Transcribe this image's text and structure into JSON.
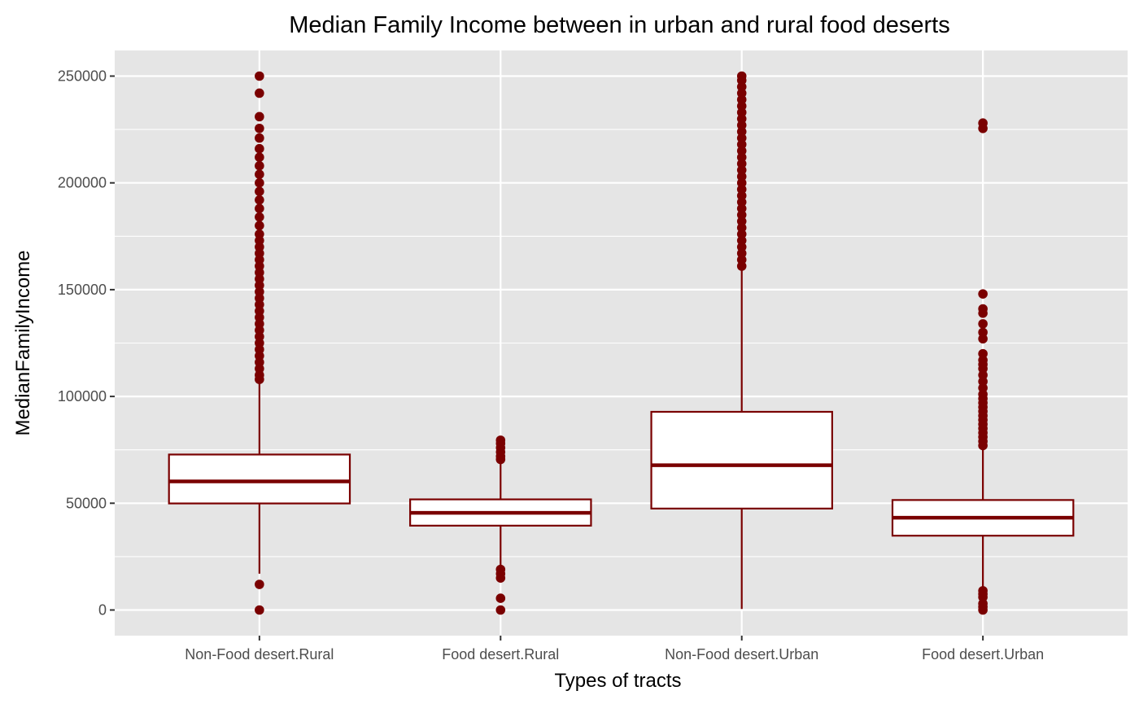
{
  "colors": {
    "panel": "#e5e5e5",
    "grid": "#ffffff",
    "box_stroke": "#7a0000",
    "box_fill": "#ffffff",
    "outlier": "#7a0000",
    "tick": "#333333"
  },
  "chart_data": {
    "type": "boxplot",
    "title": "Median Family Income between in urban and rural food deserts",
    "xlabel": "Types of tracts",
    "ylabel": "MedianFamilyIncome",
    "ylim": [
      -12000,
      262000
    ],
    "y_ticks": [
      0,
      50000,
      100000,
      150000,
      200000,
      250000
    ],
    "y_tick_labels": [
      "0",
      "50000",
      "100000",
      "150000",
      "200000",
      "250000"
    ],
    "grid": true,
    "categories": [
      "Non-Food desert.Rural",
      "Food desert.Rural",
      "Non-Food desert.Urban",
      "Food desert.Urban"
    ],
    "boxes": [
      {
        "lower_whisker": 17000,
        "q1": 49900,
        "median": 60200,
        "q3": 72800,
        "upper_whisker": 107000,
        "outliers_low": [
          0,
          12000
        ],
        "outliers_high": [
          108000,
          110000,
          113000,
          116000,
          119000,
          122000,
          125000,
          128000,
          131000,
          134000,
          137000,
          140000,
          143000,
          146000,
          149000,
          152000,
          155000,
          158000,
          161000,
          164000,
          167000,
          170000,
          173000,
          176000,
          180000,
          184000,
          188000,
          192000,
          196000,
          200000,
          204000,
          208000,
          212000,
          216000,
          221000,
          225500,
          231000,
          242000,
          250000
        ]
      },
      {
        "lower_whisker": 20000,
        "q1": 39500,
        "median": 45500,
        "q3": 51800,
        "upper_whisker": 69500,
        "outliers_low": [
          0,
          5500,
          15000,
          17000,
          19000
        ],
        "outliers_high": [
          70500,
          72000,
          74000,
          76000,
          78000,
          79500
        ]
      },
      {
        "lower_whisker": 500,
        "q1": 47500,
        "median": 67800,
        "q3": 92800,
        "upper_whisker": 160000,
        "outliers_low": [],
        "outliers_high": [
          161000,
          164000,
          167000,
          170000,
          173000,
          176000,
          179000,
          182000,
          185000,
          188000,
          191000,
          194000,
          197000,
          200000,
          203000,
          206000,
          209000,
          212000,
          215000,
          218000,
          221000,
          224000,
          227000,
          230000,
          233000,
          236000,
          239000,
          242000,
          245000,
          248000,
          250000
        ]
      },
      {
        "lower_whisker": 10000,
        "q1": 34800,
        "median": 43200,
        "q3": 51500,
        "upper_whisker": 76000,
        "outliers_low": [
          0,
          1500,
          3000,
          6000,
          7500,
          9000
        ],
        "outliers_high": [
          77000,
          79000,
          81000,
          83000,
          85000,
          87000,
          89000,
          91000,
          93000,
          95000,
          97000,
          99000,
          101000,
          104000,
          107000,
          110000,
          113000,
          115000,
          117000,
          120000,
          127000,
          130000,
          134000,
          139000,
          141000,
          148000,
          225500,
          228000
        ]
      }
    ]
  }
}
